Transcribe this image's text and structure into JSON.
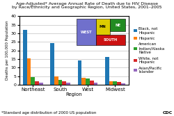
{
  "chart_data": {
    "type": "bar",
    "title": "Age-Adjusted* Average Annual Rate of Death due to HIV Disease\nby Race/Ethnicity and Geographic Region, United States, 2001–2005",
    "categories": [
      "Northeast",
      "South",
      "West",
      "Midwest"
    ],
    "xlabel": "Region",
    "ylabel": "Deaths per 100,000 Population",
    "ylim": [
      0,
      40
    ],
    "yticks": [
      0,
      5,
      10,
      15,
      20,
      25,
      30,
      35,
      40
    ],
    "grid": true,
    "legend": "right",
    "series": [
      {
        "name": "Black, not\nHispanic",
        "values": [
          32,
          24.5,
          14,
          16
        ]
      },
      {
        "name": "Hispanic",
        "values": [
          15.5,
          5,
          4,
          2
        ]
      },
      {
        "name": "American\nIndian/Alaska\nNative",
        "values": [
          4.5,
          3,
          3.5,
          2
        ]
      },
      {
        "name": "White, not\nHispanic",
        "values": [
          2,
          2,
          2.5,
          1.5
        ]
      },
      {
        "name": "Asian/Pacific\nIslander",
        "values": [
          1,
          1,
          1,
          0.8
        ]
      }
    ],
    "annotations": [
      {
        "text": "WEST",
        "color": "#7070cc"
      },
      {
        "text": "MN",
        "color": "#DDCC00"
      },
      {
        "text": "NE",
        "color": "#228B22"
      },
      {
        "text": "SOUTH",
        "color": "#CC1111"
      },
      {
        "text": "*Standard age distribution of 2000 US population"
      },
      {
        "text": "CDC"
      }
    ]
  }
}
